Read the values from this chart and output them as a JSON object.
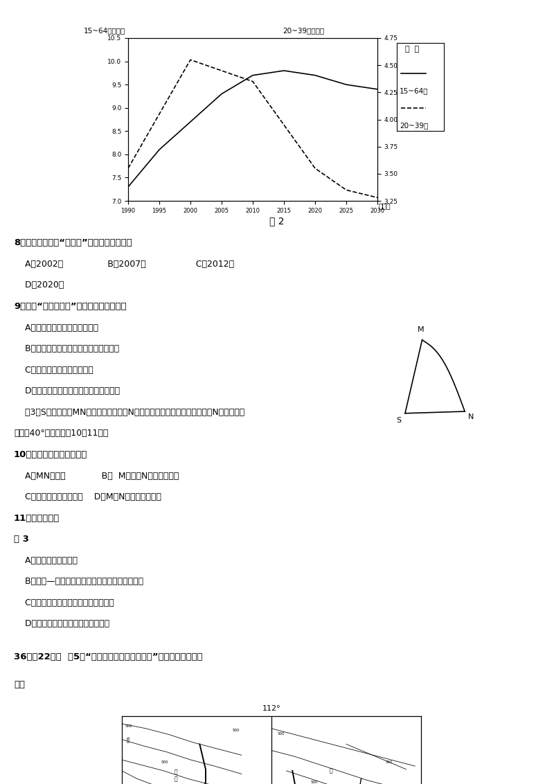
{
  "bg_color": "#ffffff",
  "chart": {
    "years": [
      1990,
      1995,
      2000,
      2005,
      2010,
      2015,
      2020,
      2025,
      2030
    ],
    "solid_line": [
      7.3,
      8.1,
      8.7,
      9.3,
      9.7,
      9.8,
      9.7,
      9.5,
      9.4
    ],
    "dashed_line": [
      3.55,
      4.05,
      4.55,
      4.45,
      4.35,
      3.95,
      3.55,
      3.35,
      3.28
    ],
    "left_ylabel": "15~64岁（亿）",
    "right_ylabel": "20~39岁（亿）",
    "left_ylim": [
      7.0,
      10.5
    ],
    "right_ylim": [
      3.25,
      4.75
    ],
    "left_yticks": [
      7.0,
      7.5,
      8.0,
      8.5,
      9.0,
      9.5,
      10.0,
      10.5
    ],
    "right_yticks": [
      3.25,
      3.5,
      3.75,
      4.0,
      4.25,
      4.5,
      4.75
    ],
    "xlabel": "（年）",
    "xticks": [
      1990,
      1995,
      2000,
      2005,
      2010,
      2015,
      2020,
      2025,
      2030
    ],
    "legend_solid": "15~64岁",
    "legend_dashed": "20~39岁",
    "legend_title": "图  例",
    "title": "图 2"
  }
}
